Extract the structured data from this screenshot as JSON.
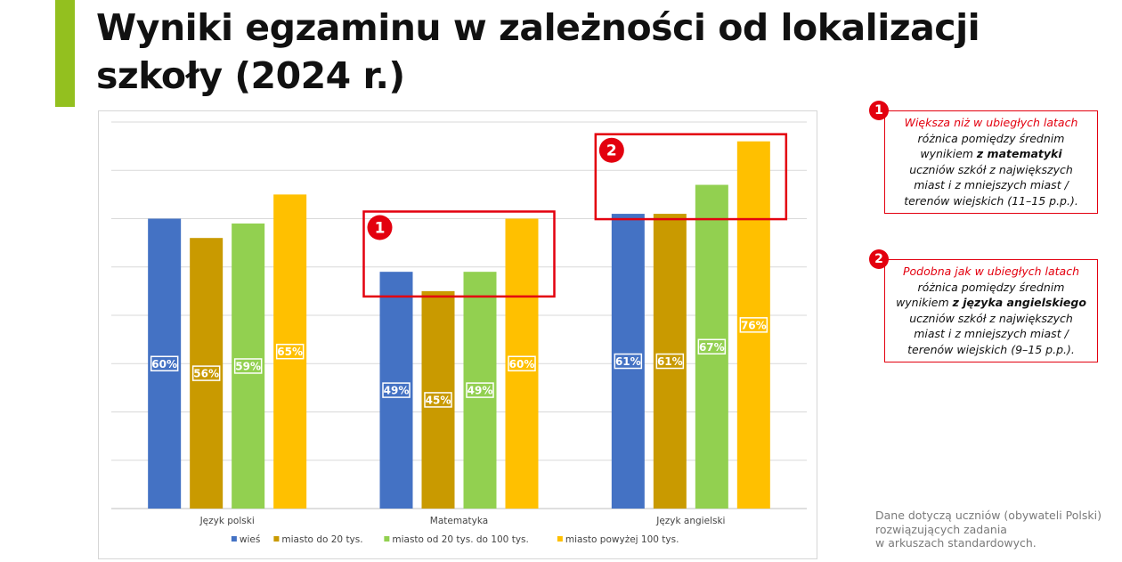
{
  "title": "Wyniki egzaminu w zależności od lokalizacji szkoły (2024 r.)",
  "colors": {
    "accent": "#93c01f",
    "highlight_red": "#e3000f"
  },
  "chart_data": {
    "type": "bar",
    "categories": [
      "Język polski",
      "Matematyka",
      "Język angielski"
    ],
    "series": [
      {
        "name": "wieś",
        "color": "#4472c4",
        "values": [
          60,
          49,
          61
        ],
        "labels": [
          "60%",
          "49%",
          "61%"
        ]
      },
      {
        "name": "miasto do 20 tys.",
        "color": "#c99a00",
        "values": [
          56,
          45,
          61
        ],
        "labels": [
          "56%",
          "45%",
          "61%"
        ]
      },
      {
        "name": "miasto od 20 tys. do 100 tys.",
        "color": "#92d050",
        "values": [
          59,
          49,
          67
        ],
        "labels": [
          "59%",
          "49%",
          "67%"
        ]
      },
      {
        "name": "miasto powyżej 100 tys.",
        "color": "#ffc000",
        "values": [
          65,
          60,
          76
        ],
        "labels": [
          "65%",
          "60%",
          "76%"
        ]
      }
    ],
    "ylim": [
      0,
      80
    ],
    "grid": true,
    "legend": "bottom",
    "highlight_boxes": [
      {
        "number": "1",
        "category": "Matematyka"
      },
      {
        "number": "2",
        "category": "Język angielski"
      }
    ]
  },
  "callouts": [
    {
      "number": "1",
      "lines": [
        [
          {
            "t": "Większa niż w ubiegłych latach",
            "s": "hl"
          }
        ],
        [
          {
            "t": "różnica pomiędzy średnim",
            "s": ""
          }
        ],
        [
          {
            "t": "wynikiem ",
            "s": ""
          },
          {
            "t": "z matematyki",
            "s": "b"
          }
        ],
        [
          {
            "t": "uczniów szkół z największych",
            "s": ""
          }
        ],
        [
          {
            "t": "miast i z mniejszych miast /",
            "s": ""
          }
        ],
        [
          {
            "t": "terenów wiejskich (11–15 p.p.).",
            "s": ""
          }
        ]
      ]
    },
    {
      "number": "2",
      "lines": [
        [
          {
            "t": "Podobna jak w ubiegłych latach",
            "s": "hl"
          }
        ],
        [
          {
            "t": "różnica pomiędzy średnim",
            "s": ""
          }
        ],
        [
          {
            "t": "wynikiem ",
            "s": ""
          },
          {
            "t": "z języka angielskiego",
            "s": "b"
          }
        ],
        [
          {
            "t": "uczniów szkół z największych",
            "s": ""
          }
        ],
        [
          {
            "t": "miast i z mniejszych miast /",
            "s": ""
          }
        ],
        [
          {
            "t": "terenów wiejskich (9–15 p.p.).",
            "s": ""
          }
        ]
      ]
    }
  ],
  "source_note": {
    "lines": [
      "Dane dotyczą uczniów (obywateli Polski)",
      "rozwiązujących zadania",
      "w arkuszach standardowych."
    ]
  }
}
